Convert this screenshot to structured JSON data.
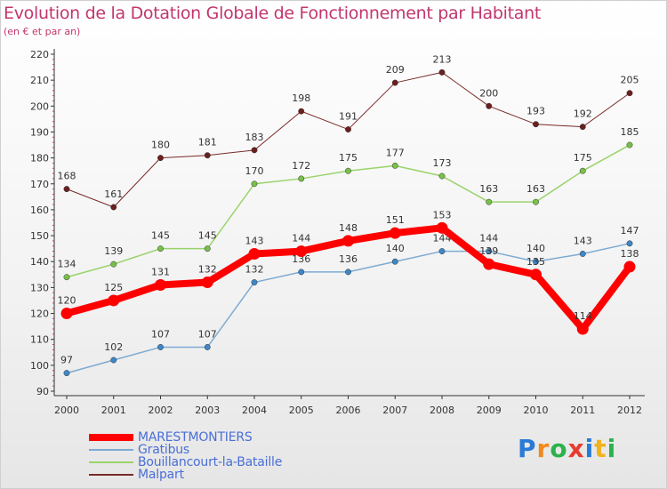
{
  "title": "Evolution de la Dotation Globale de Fonctionnement par Habitant",
  "subtitle": "(en € et par an)",
  "brand": {
    "letters": [
      "P",
      "r",
      "o",
      "x",
      "i",
      "t",
      "i"
    ],
    "colors": [
      "#2a7bd6",
      "#f08a1e",
      "#2bb24c",
      "#e63c2f",
      "#2a7bd6",
      "#f0b21e",
      "#2bb24c"
    ]
  },
  "chart_data": {
    "type": "line",
    "x": [
      "2000",
      "2001",
      "2002",
      "2003",
      "2004",
      "2005",
      "2006",
      "2007",
      "2008",
      "2009",
      "2010",
      "2011",
      "2012"
    ],
    "ylim": [
      90,
      220
    ],
    "yticks": [
      90,
      100,
      110,
      120,
      130,
      140,
      150,
      160,
      170,
      180,
      190,
      200,
      210,
      220
    ],
    "grid": false,
    "legend_position": "bottom-left",
    "series": [
      {
        "name": "Malpart",
        "color": "#7a2a2a",
        "marker": "#6b1f1f",
        "width": 1,
        "values": [
          168,
          161,
          180,
          181,
          183,
          198,
          191,
          209,
          213,
          200,
          193,
          192,
          205
        ],
        "labels": [
          "168",
          "161",
          "180",
          "181",
          "183",
          "198",
          "191",
          "209",
          "213",
          "200",
          "193",
          "192",
          "205"
        ]
      },
      {
        "name": "Bouillancourt-la-Bataille",
        "color": "#9ad36b",
        "marker": "#78c04a",
        "width": 1.5,
        "values": [
          134,
          139,
          145,
          145,
          170,
          172,
          175,
          177,
          173,
          163,
          163,
          175,
          185
        ],
        "labels": [
          "134",
          "139",
          "145",
          "145",
          "170",
          "172",
          "175",
          "177",
          "173",
          "163",
          "163",
          "175",
          "185"
        ]
      },
      {
        "name": "Gratibus",
        "color": "#7eaad2",
        "marker": "#3d87c8",
        "width": 1.5,
        "values": [
          97,
          102,
          107,
          107,
          132,
          136,
          136,
          140,
          144,
          144,
          140,
          143,
          147
        ],
        "labels": [
          "97",
          "102",
          "107",
          "107",
          "132",
          "136",
          "136",
          "140",
          "144",
          "144",
          "140",
          "143",
          "147"
        ]
      },
      {
        "name": "MARESTMONTIERS",
        "color": "#ff0000",
        "marker": "#ff0000",
        "width": 8,
        "values": [
          120,
          125,
          131,
          132,
          143,
          144,
          148,
          151,
          153,
          139,
          135,
          114,
          138
        ],
        "labels": [
          "120",
          "125",
          "131",
          "132",
          "143",
          "144",
          "148",
          "151",
          "153",
          "139",
          "135",
          "114",
          "138"
        ]
      }
    ],
    "legend": [
      "MARESTMONTIERS",
      "Gratibus",
      "Bouillancourt-la-Bataille",
      "Malpart"
    ]
  }
}
